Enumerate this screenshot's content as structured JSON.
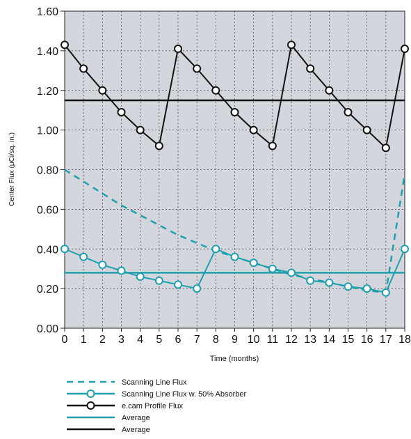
{
  "chart_data": {
    "type": "line",
    "xlabel": "Time (months)",
    "ylabel": "Center Flux (μCi/sq. in.)",
    "xlim": [
      0,
      18
    ],
    "ylim": [
      0,
      1.6
    ],
    "grid": true,
    "legend_position": "bottom",
    "x": [
      0,
      1,
      2,
      3,
      4,
      5,
      6,
      7,
      8,
      9,
      10,
      11,
      12,
      13,
      14,
      15,
      16,
      17,
      18
    ],
    "x_tick_labels": [
      "0",
      "1",
      "2",
      "3",
      "4",
      "5",
      "6",
      "7",
      "8",
      "9",
      "10",
      "11",
      "12",
      "13",
      "14",
      "15",
      "16",
      "17",
      "18"
    ],
    "y_ticks": [
      0,
      0.2,
      0.4,
      0.6,
      0.8,
      1.0,
      1.2,
      1.4,
      1.6
    ],
    "y_tick_labels": [
      "0.00",
      "0.20",
      "0.40",
      "0.60",
      "0.80",
      "1.00",
      "1.20",
      "1.40",
      "1.60"
    ],
    "series": [
      {
        "name": "Scanning Line Flux",
        "style": "dashed",
        "markers": false,
        "color": "#1f9fae",
        "x": [
          0,
          1,
          2,
          3,
          4,
          5,
          6,
          7,
          8,
          9,
          10,
          11,
          12,
          13,
          14,
          15,
          16,
          17,
          18
        ],
        "values": [
          0.8,
          0.74,
          0.68,
          0.62,
          0.57,
          0.52,
          0.47,
          0.43,
          0.39,
          0.36,
          0.33,
          0.3,
          0.27,
          0.25,
          0.23,
          0.21,
          0.19,
          0.18,
          0.78
        ]
      },
      {
        "name": "Scanning Line Flux w. 50% Absorber",
        "style": "solid",
        "markers": true,
        "color": "#1f9fae",
        "x": [
          0,
          1,
          2,
          3,
          4,
          5,
          6,
          7,
          8,
          9,
          10,
          11,
          12,
          13,
          14,
          15,
          16,
          17,
          18
        ],
        "values": [
          0.4,
          0.36,
          0.32,
          0.29,
          0.26,
          0.24,
          0.22,
          0.2,
          0.4,
          0.36,
          0.33,
          0.3,
          0.28,
          0.24,
          0.23,
          0.21,
          0.2,
          0.18,
          0.4
        ]
      },
      {
        "name": "e.cam Profile Flux",
        "style": "solid",
        "markers": true,
        "color": "#111111",
        "x": [
          0,
          1,
          2,
          3,
          4,
          5,
          6,
          7,
          8,
          9,
          10,
          11,
          12,
          13,
          14,
          15,
          16,
          17,
          18
        ],
        "values": [
          1.43,
          1.31,
          1.2,
          1.09,
          1.0,
          0.92,
          1.41,
          1.31,
          1.2,
          1.09,
          1.0,
          0.92,
          1.43,
          1.31,
          1.2,
          1.09,
          1.0,
          0.91,
          1.41
        ]
      },
      {
        "name": "Average",
        "style": "solid",
        "markers": false,
        "color": "#1f9fae",
        "x": [
          0,
          18
        ],
        "values": [
          0.28,
          0.28
        ]
      },
      {
        "name": "Average",
        "style": "solid",
        "markers": false,
        "color": "#111111",
        "x": [
          0,
          18
        ],
        "values": [
          1.15,
          1.15
        ]
      }
    ]
  },
  "colors": {
    "plot_background": "#d3d6dc",
    "grid": "#3a3a3a",
    "teal": "#1f9fae",
    "black": "#111111"
  }
}
